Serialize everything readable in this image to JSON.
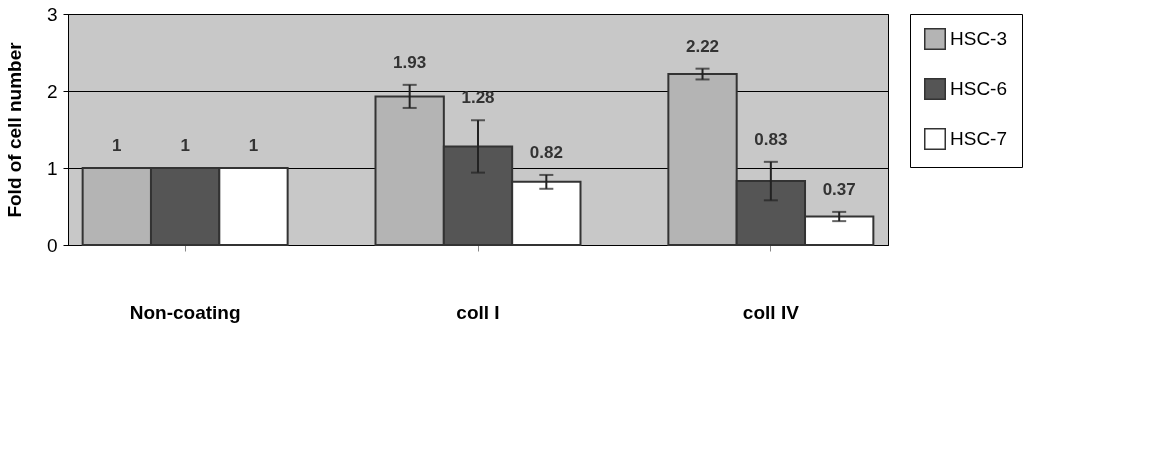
{
  "chart_data": {
    "type": "bar",
    "ylabel": "Fold of cell number",
    "categories": [
      "Non-coating",
      "coll I",
      "coll IV"
    ],
    "series": [
      {
        "name": "HSC-3",
        "color": "#b4b4b4",
        "values": [
          1,
          1.93,
          2.22
        ],
        "errors": [
          null,
          0.15,
          0.07
        ]
      },
      {
        "name": "HSC-6",
        "color": "#555555",
        "values": [
          1,
          1.28,
          0.83
        ],
        "errors": [
          null,
          0.34,
          0.25
        ]
      },
      {
        "name": "HSC-7",
        "color": "#ffffff",
        "values": [
          1,
          0.82,
          0.37
        ],
        "errors": [
          null,
          0.09,
          0.06
        ]
      }
    ],
    "ylim": [
      0,
      3
    ],
    "yticks": [
      0,
      1,
      2,
      3
    ],
    "grid": "y",
    "legend": "right",
    "data_labels": true
  }
}
